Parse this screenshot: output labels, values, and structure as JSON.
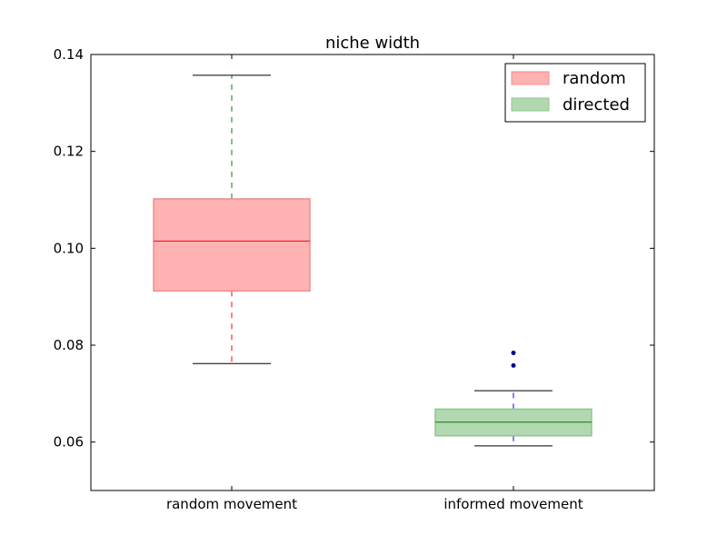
{
  "chart_data": {
    "type": "box",
    "title": "niche width",
    "xlabel": "",
    "ylabel": "",
    "ylim": [
      0.05,
      0.14
    ],
    "yticks": [
      0.06,
      0.08,
      0.1,
      0.12,
      0.14
    ],
    "ytick_labels": [
      "0.06",
      "0.08",
      "0.10",
      "0.12",
      "0.14"
    ],
    "categories": [
      "random movement",
      "informed movement"
    ],
    "grid": false,
    "legend_position": "top-right",
    "series": [
      {
        "name": "random",
        "box_fill": "#ffb2b2",
        "box_edge": "#f08c8c",
        "median_color": "#ff0000",
        "lower_whisker_color": "#ff0000",
        "upper_whisker_color": "#008000",
        "whisker_low": 0.0762,
        "q1": 0.0912,
        "median": 0.1015,
        "q3": 0.1102,
        "whisker_high": 0.1357,
        "outliers": []
      },
      {
        "name": "directed",
        "box_fill": "#b2d8b2",
        "box_edge": "#8cc88c",
        "median_color": "#008000",
        "lower_whisker_color": "#0000ff",
        "upper_whisker_color": "#0000ff",
        "whisker_low": 0.0592,
        "q1": 0.0613,
        "median": 0.0641,
        "q3": 0.0668,
        "whisker_high": 0.0706,
        "outliers": [
          0.0784,
          0.0758
        ]
      }
    ],
    "cap_color": "#000000",
    "outlier_color": "#00008b"
  }
}
